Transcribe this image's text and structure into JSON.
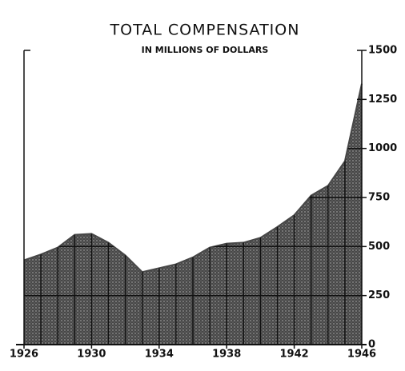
{
  "chart_data": {
    "type": "area",
    "title": "TOTAL COMPENSATION",
    "subtitle": "IN MILLIONS OF DOLLARS",
    "x": [
      1926,
      1927,
      1928,
      1929,
      1930,
      1931,
      1932,
      1933,
      1934,
      1935,
      1936,
      1937,
      1938,
      1939,
      1940,
      1941,
      1942,
      1943,
      1944,
      1945,
      1946
    ],
    "series": [
      {
        "color": "#474747",
        "values": [
          430,
          460,
          495,
          560,
          565,
          520,
          455,
          370,
          390,
          410,
          445,
          495,
          515,
          520,
          545,
          600,
          660,
          760,
          810,
          935,
          1330
        ]
      }
    ],
    "xlim": [
      1926,
      1946
    ],
    "xticks": [
      1926,
      1930,
      1934,
      1938,
      1942,
      1946
    ],
    "ylim": [
      0,
      1500
    ],
    "yticks": [
      0,
      250,
      500,
      750,
      1000,
      1250,
      1500
    ],
    "y_axis_side": "right",
    "grid": true
  }
}
